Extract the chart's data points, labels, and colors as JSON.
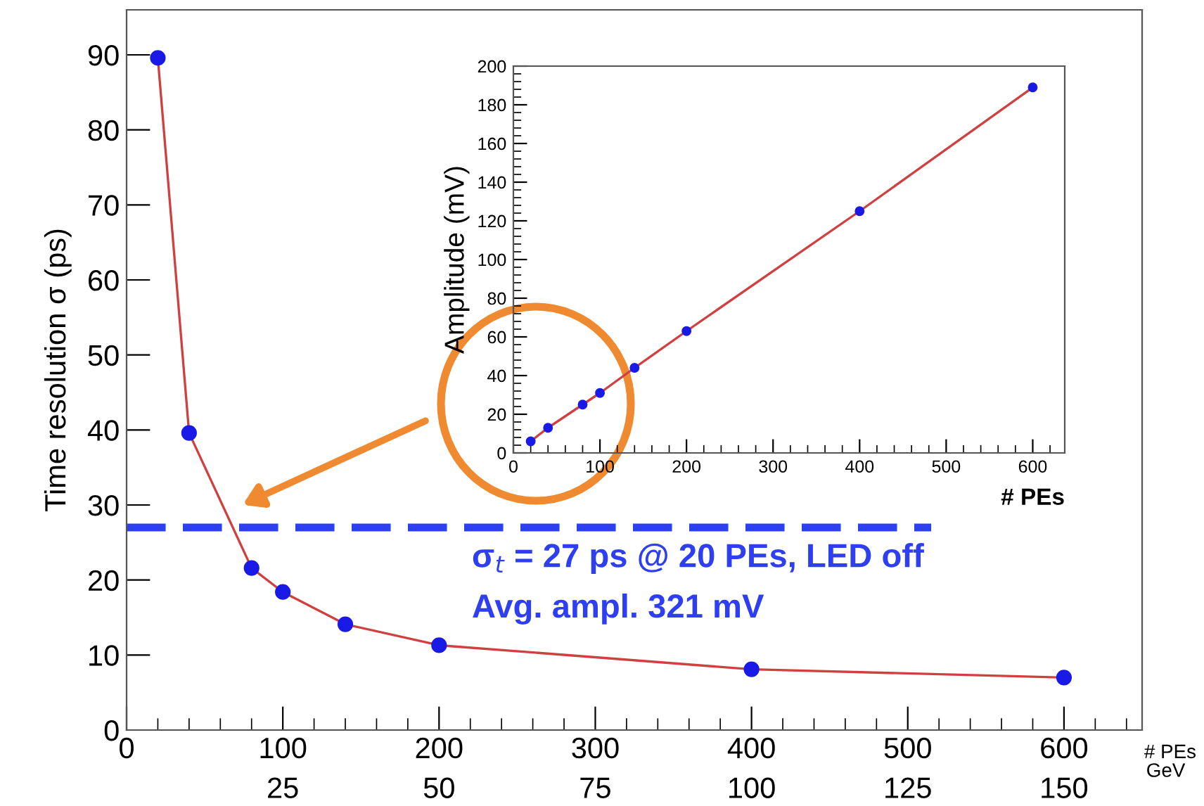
{
  "chart_data": [
    {
      "type": "line",
      "xlabel": "# PEs",
      "ylabel": "Time resolution σ (ps)",
      "x2label": "GeV",
      "marker": "circle",
      "grid": false,
      "legend": false,
      "xlim": [
        0,
        650
      ],
      "xticks": [
        0,
        100,
        200,
        300,
        400,
        500,
        600
      ],
      "ylim": [
        0,
        96
      ],
      "yticks": [
        0,
        10,
        20,
        30,
        40,
        50,
        60,
        70,
        80,
        90
      ],
      "x2lim": [
        0,
        162.5
      ],
      "x2ticks": [
        25,
        50,
        75,
        100,
        125,
        150
      ],
      "series": [
        {
          "color": "#d04040",
          "x": [
            20,
            40,
            80,
            100,
            140,
            200,
            400,
            600
          ],
          "values": [
            89.6,
            39.6,
            21.6,
            18.4,
            14.1,
            11.3,
            8.1,
            7.0
          ]
        },
        {
          "color": "#2d3ff0",
          "marker": "none",
          "line_style": "dashed",
          "x": [
            0,
            515
          ],
          "values": [
            27,
            27
          ]
        }
      ],
      "annotations": [
        "σ$_{t}$ = 27 ps @ 20 PEs, LED off",
        "Avg. ampl. 321 mV"
      ]
    },
    {
      "type": "line",
      "xlabel": "# PEs",
      "ylabel": "Amplitude (mV)",
      "marker": "circle",
      "grid": false,
      "legend": false,
      "xlim": [
        0,
        637
      ],
      "xticks": [
        0,
        100,
        200,
        300,
        400,
        500,
        600
      ],
      "ylim": [
        0,
        200
      ],
      "yticks": [
        0,
        20,
        40,
        60,
        80,
        100,
        120,
        140,
        160,
        180,
        200
      ],
      "series": [
        {
          "color": "#d04040",
          "x": [
            20,
            40,
            80,
            100,
            140,
            200,
            400,
            600
          ],
          "values": [
            6,
            13,
            25,
            31,
            44,
            63,
            125,
            189
          ]
        }
      ]
    }
  ]
}
